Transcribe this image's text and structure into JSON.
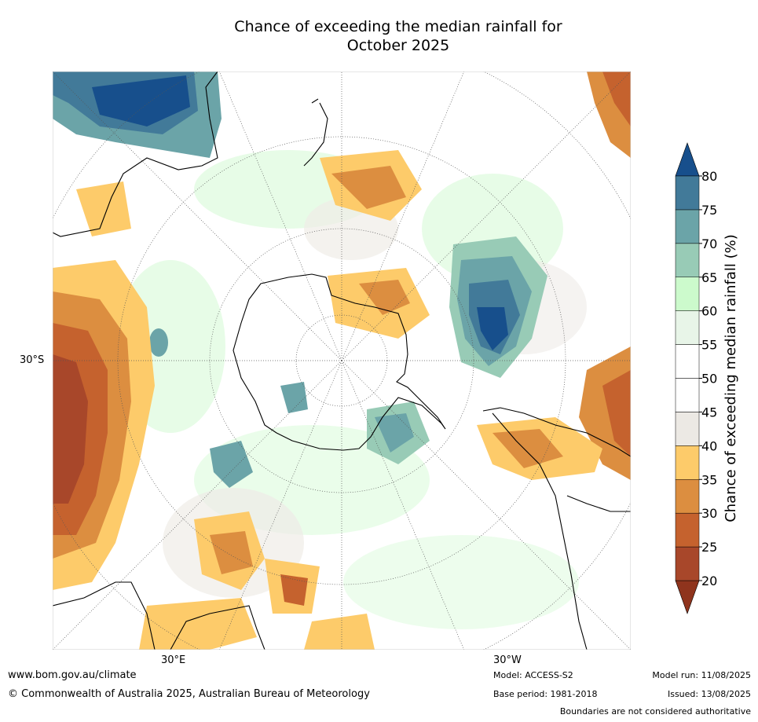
{
  "title_line1": "Chance of exceeding the median rainfall for",
  "title_line2": "October 2025",
  "axes": {
    "lat_label": "30°S",
    "lon_labels": [
      "30°E",
      "30°W"
    ]
  },
  "colorbar": {
    "label": "Chance of exceeding median rainfall (%)",
    "ticks": [
      "20",
      "25",
      "30",
      "35",
      "40",
      "45",
      "50",
      "55",
      "60",
      "65",
      "70",
      "75",
      "80"
    ],
    "colors": [
      "#a8472a",
      "#c5622e",
      "#dc8e40",
      "#fdcb6a",
      "#ece9e4",
      "#ffffff",
      "#ffffff",
      "#e8f5e8",
      "#ccfacc",
      "#98cbb6",
      "#6ba4a8",
      "#427a99"
    ],
    "under_color": "#8f341d",
    "over_color": "#174f8c"
  },
  "colors": {
    "land_line": "#000000",
    "grid": "#555555"
  },
  "footer": {
    "url": "www.bom.gov.au/climate",
    "copyright": "© Commonwealth of Australia 2025, Australian Bureau of Meteorology",
    "model": "Model: ACCESS-S2",
    "base_period": "Base period: 1981-2018",
    "model_run": "Model run: 11/08/2025",
    "issued": "Issued: 13/08/2025",
    "disclaimer": "Boundaries are not considered authoritative"
  }
}
